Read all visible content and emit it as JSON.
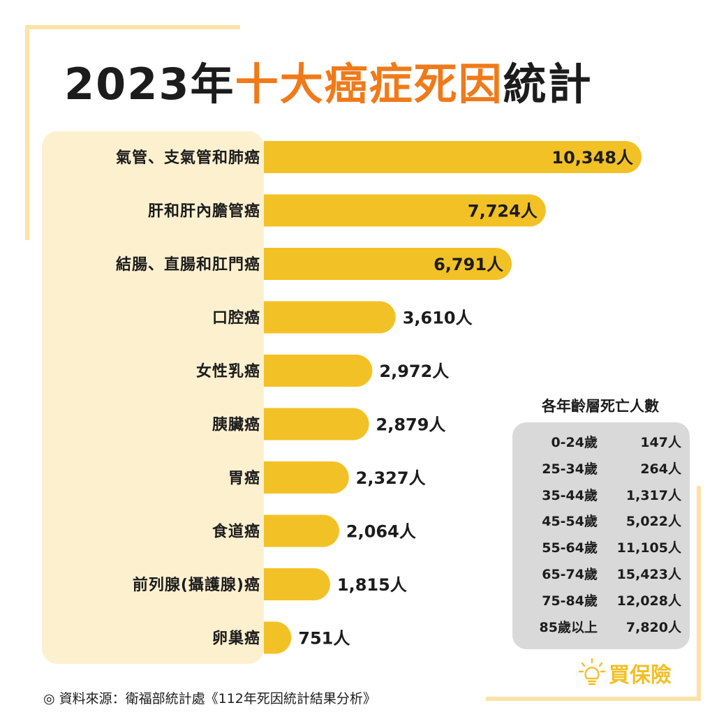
{
  "title": {
    "prefix": "2023年",
    "highlight": "十大癌症死因",
    "suffix": "統計"
  },
  "colors": {
    "bar": "#f2c125",
    "label_panel": "#fdf0cf",
    "accent": "#f07a1a",
    "frame": "#fbe3a6",
    "age_box": "#d9d9d9"
  },
  "chart_data": {
    "type": "bar",
    "orientation": "horizontal",
    "categories": [
      "氣管、支氣管和肺癌",
      "肝和肝內膽管癌",
      "結腸、直腸和肛門癌",
      "口腔癌",
      "女性乳癌",
      "胰臟癌",
      "胃癌",
      "食道癌",
      "前列腺(攝護腺)癌",
      "卵巢癌"
    ],
    "values": [
      10348,
      7724,
      6791,
      3610,
      2972,
      2879,
      2327,
      2064,
      1815,
      751
    ],
    "value_labels": [
      "10,348人",
      "7,724人",
      "6,791人",
      "3,610人",
      "2,972人",
      "2,879人",
      "2,327人",
      "2,064人",
      "1,815人",
      "751人"
    ],
    "unit": "人",
    "xlim": [
      0,
      10348
    ],
    "grid": false,
    "legend": "none"
  },
  "age_table": {
    "title": "各年齡層死亡人數",
    "rows": [
      {
        "age": "0-24歲",
        "count": "147人"
      },
      {
        "age": "25-34歲",
        "count": "264人"
      },
      {
        "age": "35-44歲",
        "count": "1,317人"
      },
      {
        "age": "45-54歲",
        "count": "5,022人"
      },
      {
        "age": "55-64歲",
        "count": "11,105人"
      },
      {
        "age": "65-74歲",
        "count": "15,423人"
      },
      {
        "age": "75-84歲",
        "count": "12,028人"
      },
      {
        "age": "85歲以上",
        "count": "7,820人"
      }
    ]
  },
  "logo": {
    "text": "買保險",
    "icon": "lightbulb-icon"
  },
  "source": "◎ 資料來源：衛福部統計處《112年死因統計結果分析》"
}
